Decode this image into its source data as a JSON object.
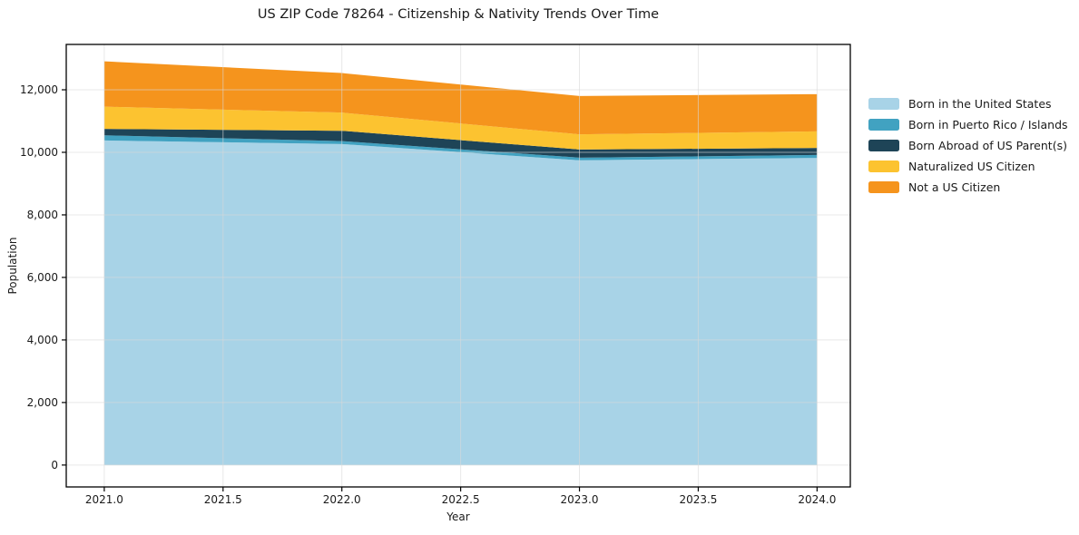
{
  "chart_data": {
    "type": "area",
    "stacked": true,
    "title": "US ZIP Code 78264 - Citizenship & Nativity Trends Over Time",
    "xlabel": "Year",
    "ylabel": "Population",
    "x": [
      2021,
      2022,
      2023,
      2024
    ],
    "series": [
      {
        "name": "Born in the United States",
        "color": "#a8d3e7",
        "values": [
          10380,
          10265,
          9745,
          9820
        ]
      },
      {
        "name": "Born in Puerto Rico / Islands",
        "color": "#41a2c1",
        "values": [
          165,
          95,
          85,
          95
        ]
      },
      {
        "name": "Born Abroad of US Parent(s)",
        "color": "#1e4457",
        "values": [
          205,
          330,
          260,
          225
        ]
      },
      {
        "name": "Naturalized US Citizen",
        "color": "#fcc330",
        "values": [
          710,
          580,
          485,
          530
        ]
      },
      {
        "name": "Not a US Citizen",
        "color": "#f5941d",
        "values": [
          1450,
          1265,
          1225,
          1190
        ]
      }
    ],
    "xlim": [
      2020.84,
      2024.14
    ],
    "ylim": [
      -700,
      13450
    ],
    "xticks": [
      2021.0,
      2021.5,
      2022.0,
      2022.5,
      2023.0,
      2023.5,
      2024.0
    ],
    "xtick_labels": [
      "2021.0",
      "2021.5",
      "2022.0",
      "2022.5",
      "2023.0",
      "2023.5",
      "2024.0"
    ],
    "yticks": [
      0,
      2000,
      4000,
      6000,
      8000,
      10000,
      12000
    ],
    "ytick_labels": [
      "0",
      "2,000",
      "4,000",
      "6,000",
      "8,000",
      "10,000",
      "12,000"
    ],
    "grid": true,
    "legend_position": "right",
    "colors": {
      "background": "#ffffff",
      "spine": "#000000",
      "grid": "#d9d9d9",
      "text": "#1a1a1a"
    }
  }
}
